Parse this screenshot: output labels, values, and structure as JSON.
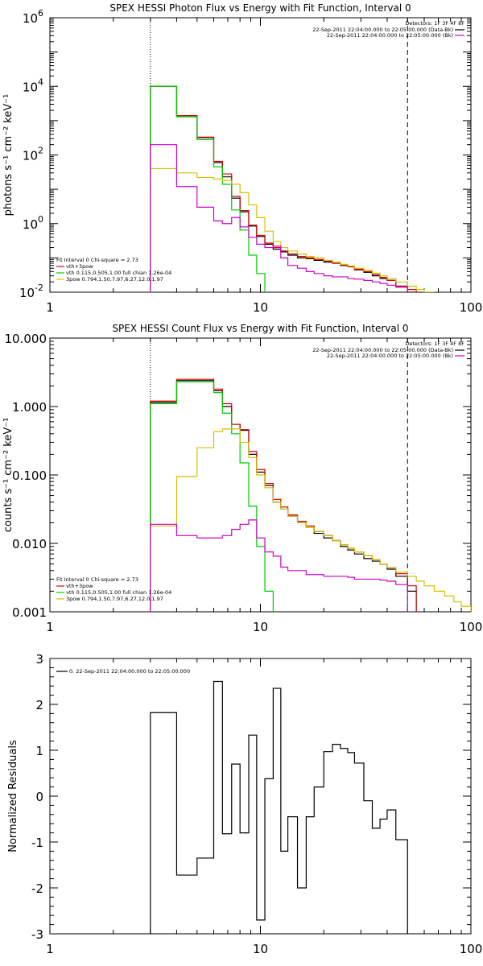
{
  "chart_data": [
    {
      "type": "line",
      "title": "SPEX HESSI Photon Flux vs Energy with Fit Function, Interval 0",
      "ylabel": "photons s⁻¹ cm⁻² keV⁻¹",
      "xlabel": "",
      "x_scale": "log",
      "y_scale": "log",
      "xlim": [
        1,
        100
      ],
      "ylim": [
        0.01,
        1000000
      ],
      "x_ticks": [
        "1",
        "10",
        "100"
      ],
      "y_ticks": [
        {
          "base": "10",
          "exp": "-2",
          "value": 0.01
        },
        {
          "base": "10",
          "exp": "0",
          "value": 1
        },
        {
          "base": "10",
          "exp": "2",
          "value": 100
        },
        {
          "base": "10",
          "exp": "4",
          "value": 10000
        },
        {
          "base": "10",
          "exp": "6",
          "value": 1000000
        }
      ],
      "vlines": [
        {
          "x": 3,
          "style": "dotted"
        },
        {
          "x": 50,
          "style": "dashed"
        }
      ],
      "legend_topright": {
        "header": "Detectors: 1F 3F 4F 8F",
        "rows": [
          {
            "text": "22-Sep-2011 22:04:00.000 to 22:05:00.000 (Data-Bk)",
            "color": "#000000"
          },
          {
            "text": "22-Sep-2011 22:04:00.000 to 22:05:00.000 (Bk)",
            "color": "#cc00cc"
          }
        ]
      },
      "legend_bottomleft": {
        "header": "Fit Interval 0   Chi-square = 2.73",
        "rows": [
          {
            "text": "vth+3pow",
            "color": "#d40000"
          },
          {
            "text": "vth 0.115,0.505,1.00  full chian 1.26e-04",
            "color": "#00cc00"
          },
          {
            "text": "3pow 0.794,1.50,7.97,6.27,12.0,1.97",
            "color": "#d4c000"
          }
        ]
      },
      "bin_edges": [
        3,
        4,
        5,
        6,
        6.6,
        7.3,
        8,
        8.8,
        9.6,
        10.5,
        11.5,
        12.5,
        13.5,
        15,
        16.5,
        18,
        20,
        22,
        24,
        26,
        28,
        31,
        34,
        37,
        40,
        44,
        50,
        55,
        60,
        67,
        75,
        83,
        90
      ],
      "series": [
        {
          "name": "Data-Bk",
          "color": "#000000",
          "values": [
            10000,
            1300,
            320,
            60,
            23,
            5.5,
            2.2,
            0.85,
            0.42,
            0.25,
            0.18,
            0.15,
            0.12,
            0.1,
            0.095,
            0.085,
            0.075,
            0.07,
            0.06,
            0.055,
            0.045,
            0.038,
            0.03,
            0.025,
            0.022,
            0.015,
            0.01,
            null,
            null,
            null,
            null,
            null
          ]
        },
        {
          "name": "vth+3pow",
          "color": "#d40000",
          "values": [
            10000,
            1400,
            330,
            65,
            28,
            6.2,
            2.4,
            0.9,
            0.45,
            0.27,
            0.2,
            0.16,
            0.13,
            0.11,
            0.1,
            0.09,
            0.08,
            0.07,
            0.062,
            0.055,
            0.047,
            0.04,
            0.033,
            0.027,
            0.022,
            0.015,
            0.012,
            null,
            null,
            null,
            null,
            null
          ]
        },
        {
          "name": "vth",
          "color": "#00cc00",
          "values": [
            10000,
            1300,
            280,
            45,
            14,
            2.5,
            0.65,
            0.12,
            0.035,
            0.008,
            null,
            null,
            null,
            null,
            null,
            null,
            null,
            null,
            null,
            null,
            null,
            null,
            null,
            null,
            null,
            null,
            null,
            null,
            null,
            null,
            null,
            null
          ]
        },
        {
          "name": "3pow",
          "color": "#d4c000",
          "values": [
            40,
            30,
            22,
            20,
            18,
            14,
            8,
            3.5,
            1.5,
            0.6,
            0.3,
            0.2,
            0.16,
            0.13,
            0.11,
            0.1,
            0.085,
            0.075,
            0.065,
            0.058,
            0.05,
            0.043,
            0.036,
            0.03,
            0.025,
            0.02,
            0.015,
            0.012,
            0.01,
            0.008,
            0.006,
            0.004
          ]
        },
        {
          "name": "Bk",
          "color": "#cc00cc",
          "values": [
            200,
            12,
            3,
            1.2,
            1.0,
            1.5,
            0.8,
            0.4,
            0.25,
            0.2,
            0.22,
            0.1,
            0.06,
            0.05,
            0.04,
            0.035,
            0.03,
            0.028,
            0.028,
            0.025,
            0.024,
            0.022,
            0.02,
            0.018,
            0.016,
            0.014,
            null,
            null,
            null,
            null,
            null,
            null
          ]
        }
      ]
    },
    {
      "type": "line",
      "title": "SPEX HESSI Count Flux vs Energy with Fit Function, Interval 0",
      "ylabel": "counts s⁻¹ cm⁻² keV⁻¹",
      "xlabel": "",
      "x_scale": "log",
      "y_scale": "log",
      "xlim": [
        1,
        100
      ],
      "ylim": [
        0.001,
        10
      ],
      "x_ticks": [
        "1",
        "10",
        "100"
      ],
      "y_ticks": [
        "0.001",
        "0.010",
        "0.100",
        "1.000",
        "10.000"
      ],
      "vlines": [
        {
          "x": 3,
          "style": "dotted"
        },
        {
          "x": 50,
          "style": "dashed"
        }
      ],
      "legend_topright": {
        "header": "Detectors: 1F 3F 4F 8F",
        "rows": [
          {
            "text": "22-Sep-2011 22:04:00.000 to 22:05:00.000 (Data-Bk)",
            "color": "#000000"
          },
          {
            "text": "22-Sep-2011 22:04:00.000 to 22:05:00.000 (Bk)",
            "color": "#cc00cc"
          }
        ]
      },
      "legend_bottomleft": {
        "header": "Fit Interval 0   Chi-square = 2.73",
        "rows": [
          {
            "text": "vth+3pow",
            "color": "#d40000"
          },
          {
            "text": "vth 0.115,0.505,1.00  full chian 1.26e-04",
            "color": "#00cc00"
          },
          {
            "text": "3pow 0.794,1.50,7.97,6.27,12.0,1.97",
            "color": "#d4c000"
          }
        ]
      },
      "bin_edges": [
        3,
        4,
        5,
        6,
        6.6,
        7.3,
        8,
        8.8,
        9.6,
        10.5,
        11.5,
        12.5,
        13.5,
        15,
        16.5,
        18,
        20,
        22,
        24,
        26,
        28,
        31,
        34,
        37,
        40,
        44,
        50,
        55,
        60,
        67,
        75,
        83,
        90,
        100
      ],
      "series": [
        {
          "name": "Data-Bk",
          "color": "#000000",
          "values": [
            1.15,
            2.4,
            2.4,
            1.7,
            1.0,
            0.55,
            0.45,
            0.2,
            0.11,
            0.07,
            0.04,
            0.032,
            0.025,
            0.02,
            0.017,
            0.014,
            0.012,
            0.011,
            0.009,
            0.008,
            0.007,
            0.006,
            0.0055,
            0.005,
            0.0042,
            0.0033,
            0.002,
            null,
            null,
            null,
            null,
            null,
            null
          ]
        },
        {
          "name": "vth+3pow",
          "color": "#d40000",
          "values": [
            1.2,
            2.5,
            2.5,
            1.8,
            1.1,
            0.55,
            0.46,
            0.22,
            0.12,
            0.075,
            0.044,
            0.034,
            0.026,
            0.021,
            0.018,
            0.015,
            0.013,
            0.011,
            0.0095,
            0.0085,
            0.0075,
            0.0066,
            0.0058,
            0.005,
            0.0044,
            0.0036,
            0.0024,
            null,
            null,
            null,
            null,
            null,
            null
          ]
        },
        {
          "name": "vth",
          "color": "#00cc00",
          "values": [
            1.1,
            2.3,
            2.3,
            1.6,
            0.8,
            0.4,
            0.15,
            0.035,
            0.009,
            0.002,
            0.0008,
            null,
            null,
            null,
            null,
            null,
            null,
            null,
            null,
            null,
            null,
            null,
            null,
            null,
            null,
            null,
            null,
            null,
            null,
            null,
            null,
            null,
            null
          ]
        },
        {
          "name": "3pow",
          "color": "#d4c000",
          "values": [
            0.018,
            0.095,
            0.25,
            0.43,
            0.47,
            0.47,
            0.3,
            0.18,
            0.1,
            0.065,
            0.04,
            0.032,
            0.025,
            0.02,
            0.017,
            0.015,
            0.013,
            0.011,
            0.0095,
            0.0085,
            0.0075,
            0.0066,
            0.0058,
            0.005,
            0.0044,
            0.0038,
            0.0033,
            0.0028,
            0.0024,
            0.002,
            0.0017,
            0.0014,
            0.0012
          ]
        },
        {
          "name": "Bk",
          "color": "#cc00cc",
          "values": [
            0.019,
            0.013,
            0.012,
            0.012,
            0.013,
            0.016,
            0.019,
            0.022,
            0.012,
            0.0075,
            0.0065,
            0.0045,
            0.004,
            0.004,
            0.0035,
            0.0035,
            0.0033,
            0.0033,
            0.0033,
            0.0032,
            0.003,
            0.003,
            0.003,
            0.0029,
            0.0028,
            0.0025,
            null,
            null,
            null,
            null,
            null,
            null,
            null
          ]
        }
      ]
    },
    {
      "type": "line",
      "title": "",
      "ylabel": "Normalized Residuals",
      "xlabel": "",
      "x_scale": "log",
      "y_scale": "linear",
      "xlim": [
        1,
        100
      ],
      "ylim": [
        -3,
        3
      ],
      "x_ticks": [
        "1",
        "10",
        "100"
      ],
      "y_ticks": [
        "-3",
        "-2",
        "-1",
        "0",
        "1",
        "2",
        "3"
      ],
      "legend": {
        "text": "0. 22-Sep-2011 22:04:00.000 to 22:05:00.000",
        "color": "#000000"
      },
      "bin_edges": [
        3,
        4,
        5,
        6,
        6.6,
        7.3,
        8,
        8.8,
        9.6,
        10.5,
        11.5,
        12.5,
        13.5,
        15,
        16.5,
        18,
        20,
        22,
        24,
        26,
        28,
        31,
        34,
        37,
        40,
        44,
        50
      ],
      "series": [
        {
          "name": "residuals",
          "color": "#000000",
          "values": [
            1.82,
            -1.72,
            -1.35,
            2.5,
            -0.82,
            0.7,
            -0.8,
            1.33,
            -2.7,
            0.38,
            2.35,
            -1.2,
            -0.45,
            -2.0,
            -0.45,
            0.2,
            0.97,
            1.13,
            1.04,
            0.95,
            0.72,
            -0.1,
            -0.7,
            -0.5,
            -0.3,
            -0.95
          ]
        }
      ]
    }
  ]
}
